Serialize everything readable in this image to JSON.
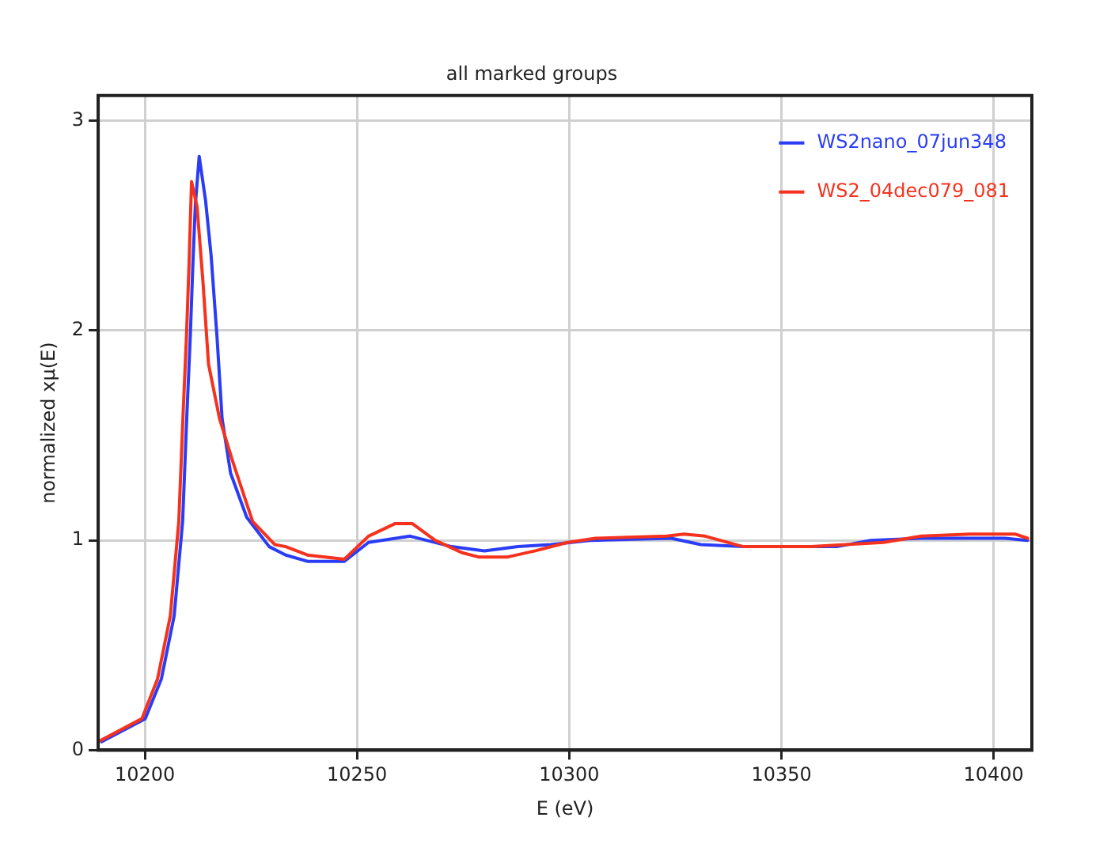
{
  "chart_data": {
    "type": "line",
    "title": "all marked groups",
    "xlabel": "E (eV)",
    "ylabel": "normalized xμ(E)",
    "xlim": [
      10189,
      10409
    ],
    "xticks": [
      10200,
      10250,
      10300,
      10350,
      10400
    ],
    "ylim": [
      0,
      3.12
    ],
    "yticks": [
      0,
      1,
      2,
      3
    ],
    "grid": true,
    "legend": "top right",
    "marker": "none",
    "line_style": "solid",
    "series": [
      {
        "name": "WS2nano_07jun348",
        "color": "#2a3cf5",
        "x": [
          10189.8,
          10200.1,
          10203.9,
          10206.9,
          10208.9,
          10209.9,
          10210.7,
          10211.3,
          10211.9,
          10212.8,
          10214.3,
          10215.6,
          10217,
          10218.2,
          10220.2,
          10224,
          10229.3,
          10233.2,
          10238.3,
          10247,
          10252.7,
          10262.5,
          10272.3,
          10280,
          10287.9,
          10295.7,
          10304.8,
          10324,
          10331,
          10341,
          10363,
          10371,
          10383,
          10402.5,
          10408
        ],
        "values": [
          0.04,
          0.15,
          0.34,
          0.64,
          1.09,
          1.6,
          1.97,
          2.31,
          2.6,
          2.83,
          2.62,
          2.36,
          1.97,
          1.58,
          1.32,
          1.11,
          0.97,
          0.93,
          0.9,
          0.9,
          0.99,
          1.02,
          0.97,
          0.95,
          0.97,
          0.98,
          1.0,
          1.01,
          0.98,
          0.97,
          0.97,
          1.0,
          1.01,
          1.01,
          1.0
        ]
      },
      {
        "name": "WS2_04dec079_081",
        "color": "#f5321e",
        "x": [
          10189,
          10199.3,
          10203,
          10206,
          10208,
          10209,
          10209.8,
          10210.4,
          10211,
          10212.3,
          10213.7,
          10215,
          10217.6,
          10220.8,
          10225.4,
          10230.6,
          10233.2,
          10238.3,
          10247,
          10252.7,
          10259,
          10263,
          10268.4,
          10274.9,
          10278.8,
          10285.3,
          10292,
          10299.6,
          10306.2,
          10323,
          10327,
          10332,
          10341,
          10357,
          10374,
          10383,
          10394.5,
          10405,
          10408
        ],
        "values": [
          0.04,
          0.15,
          0.34,
          0.64,
          1.09,
          1.6,
          1.97,
          2.31,
          2.71,
          2.59,
          2.23,
          1.84,
          1.58,
          1.37,
          1.09,
          0.98,
          0.97,
          0.93,
          0.91,
          1.02,
          1.08,
          1.08,
          1.0,
          0.94,
          0.92,
          0.92,
          0.95,
          0.99,
          1.01,
          1.02,
          1.03,
          1.02,
          0.97,
          0.97,
          0.99,
          1.02,
          1.03,
          1.03,
          1.01
        ]
      }
    ]
  }
}
